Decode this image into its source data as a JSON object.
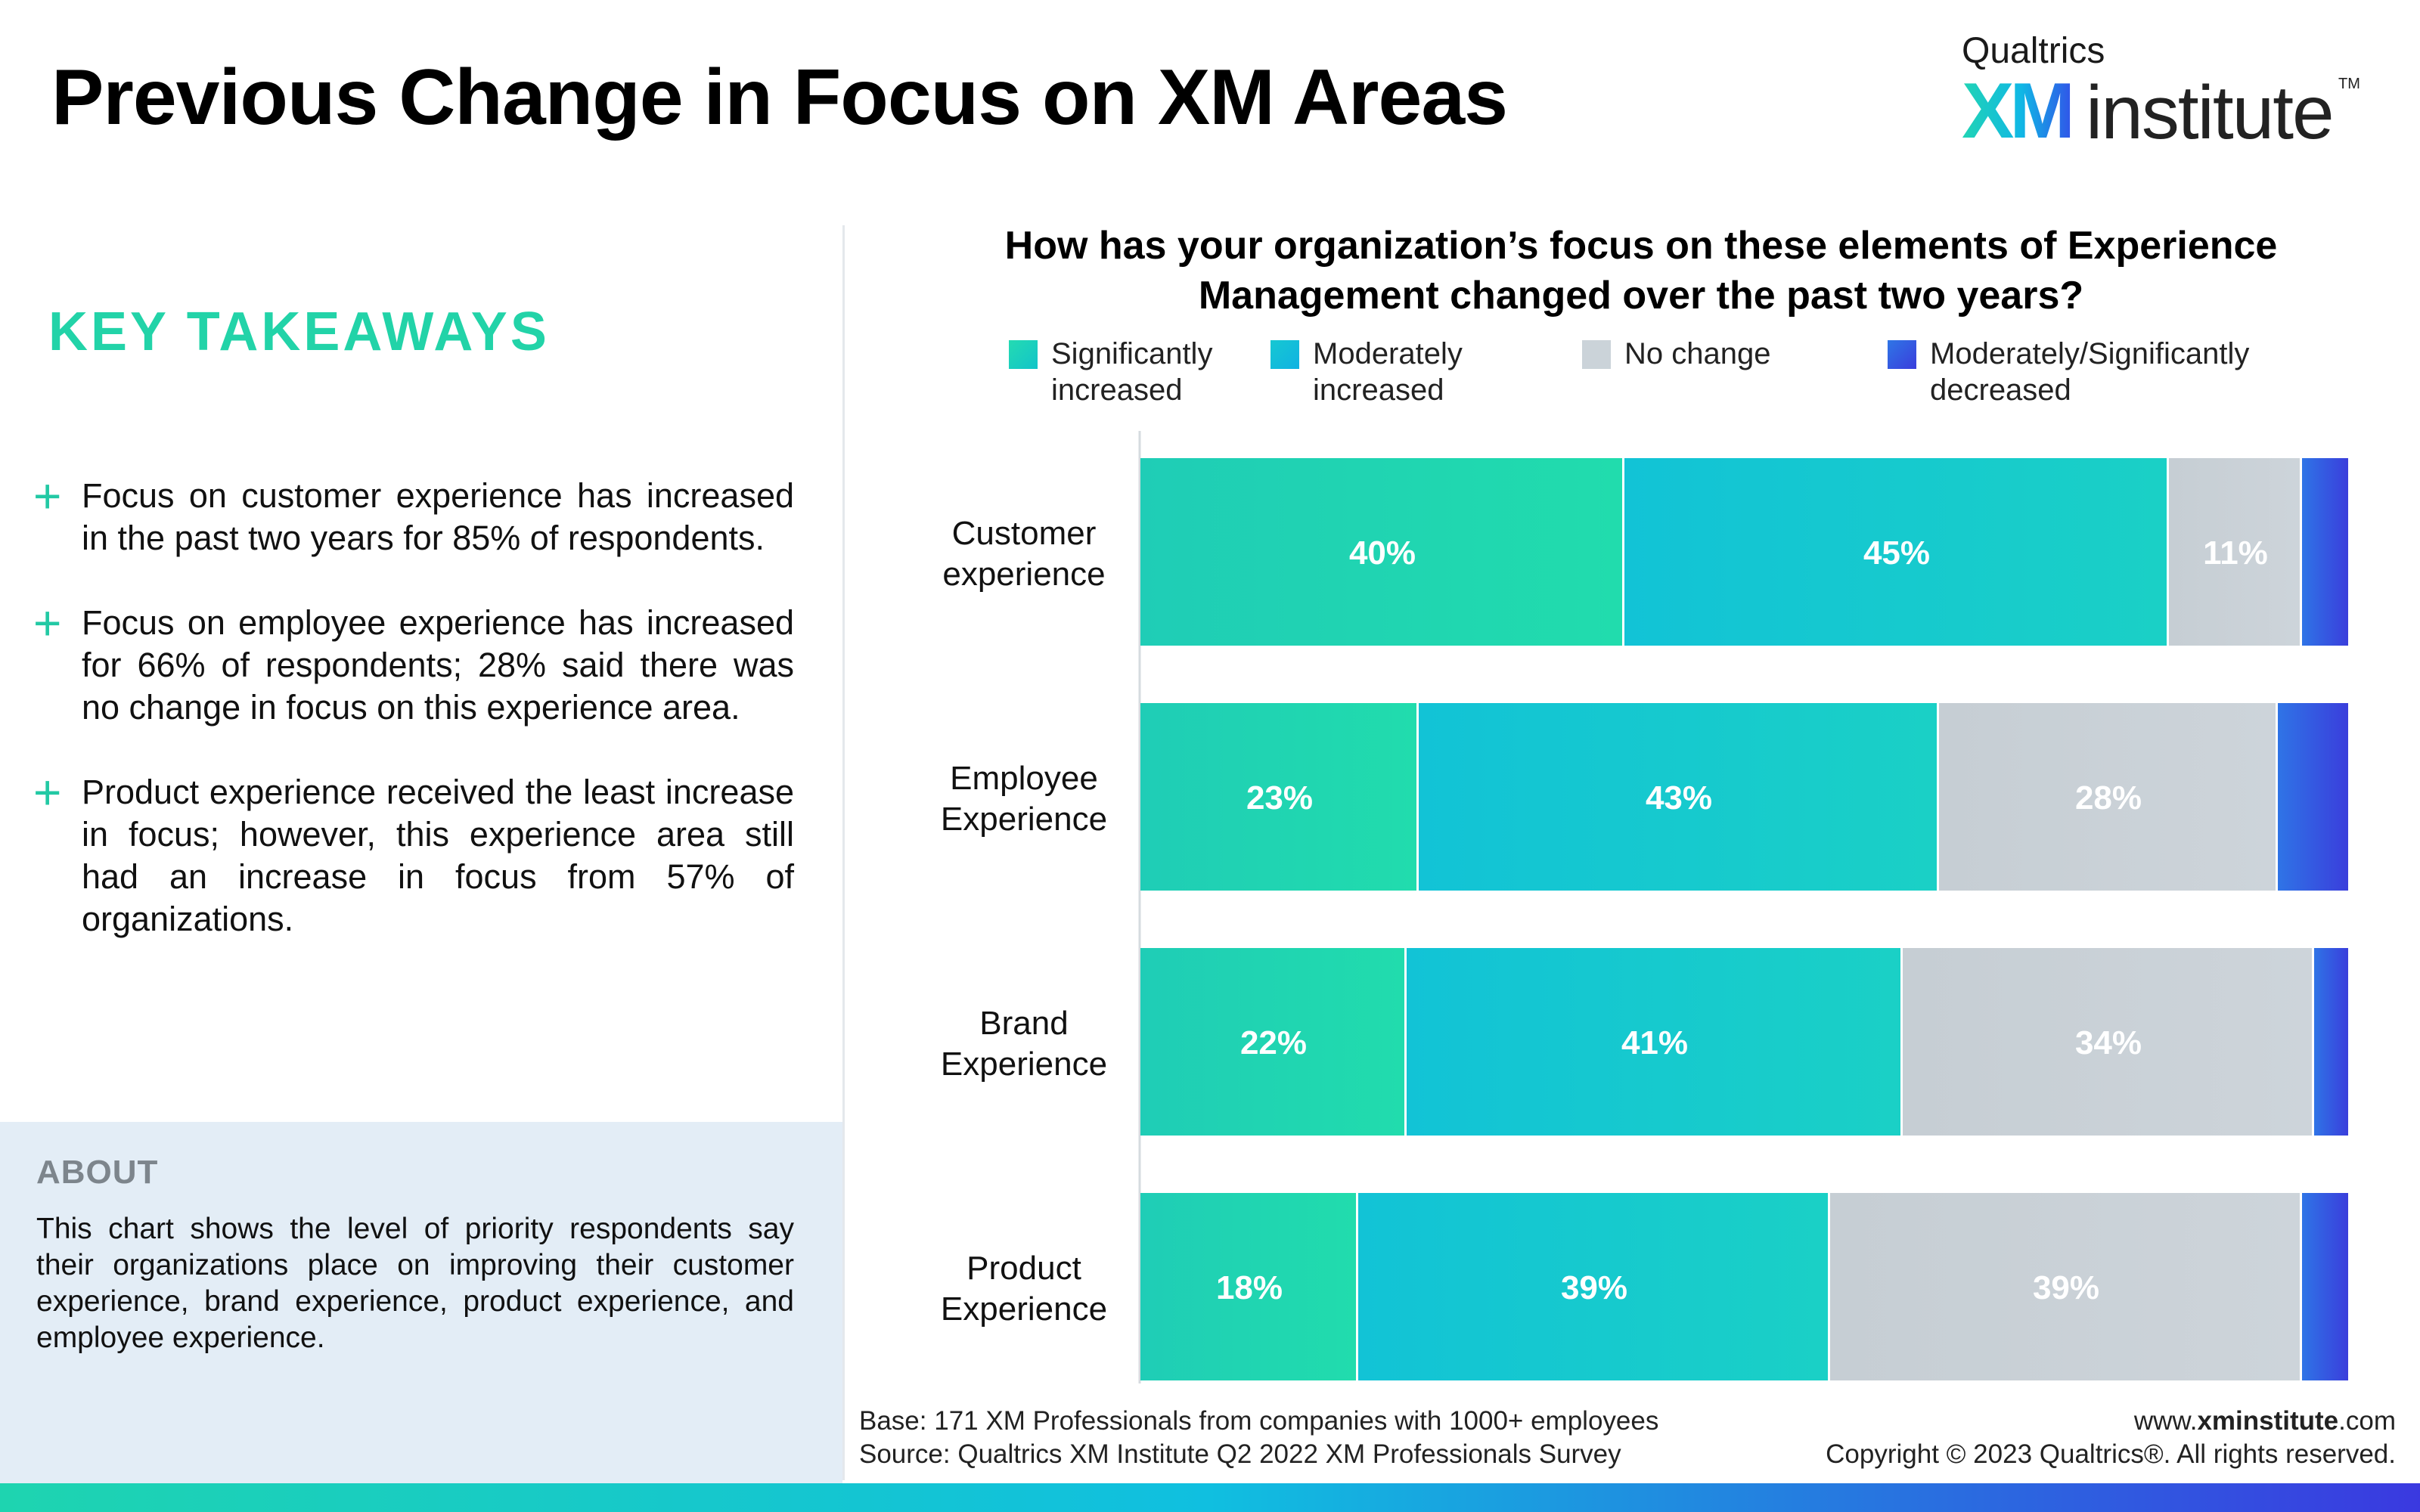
{
  "header": {
    "title": "Previous Change in Focus on XM Areas"
  },
  "logo": {
    "qualtrics": "Qualtrics",
    "xm": "XM",
    "institute": "institute",
    "tm": "TM"
  },
  "sidebar": {
    "key_takeaways_title": "KEY TAKEAWAYS",
    "takeaways": [
      {
        "text": "Focus on customer experience has increased in the past two years for 85% of respondents."
      },
      {
        "text": "Focus on employee experience has increased for 66% of respondents; 28% said there was no change in focus on this experience area."
      },
      {
        "text": "Product experience received the least increase in focus; however, this experience area still had an increase in focus from 57% of organizations."
      }
    ],
    "about_title": "ABOUT",
    "about_text": "This chart shows the level of priority respondents say their organizations place on improving their customer experience, brand experience, product experience, and employee experience."
  },
  "chart_data": {
    "type": "bar",
    "orientation": "horizontal",
    "stacked": true,
    "title": "How has your organization’s focus on these elements of Experience Management changed over the past two years?",
    "categories": [
      "Customer experience",
      "Employee Experience",
      "Brand Experience",
      "Product Experience"
    ],
    "series": [
      {
        "name": "Significantly increased",
        "values": [
          40,
          23,
          22,
          18
        ],
        "labels": [
          "40%",
          "23%",
          "22%",
          "18%"
        ],
        "color": "#1fd6b0"
      },
      {
        "name": "Moderately increased",
        "values": [
          45,
          43,
          41,
          39
        ],
        "labels": [
          "45%",
          "43%",
          "41%",
          "39%"
        ],
        "color": "#14c5d6"
      },
      {
        "name": "No change",
        "values": [
          11,
          28,
          34,
          39
        ],
        "labels": [
          "11%",
          "28%",
          "34%",
          "39%"
        ],
        "color": "#c8d0d6"
      },
      {
        "name": "Moderately/Significantly decreased",
        "values": [
          4,
          6,
          3,
          4
        ],
        "labels": [
          "",
          "",
          "",
          ""
        ],
        "color": "#2f5ae6"
      }
    ],
    "xlim": [
      0,
      100
    ],
    "grid": false,
    "legend": "top"
  },
  "footer": {
    "base": "Base: 171 XM Professionals from companies with 1000+ employees",
    "source": "Source: Qualtrics XM Institute Q2 2022 XM Professionals Survey",
    "url_prefix": "www.",
    "url_bold": "xminstitute",
    "url_suffix": ".com",
    "copyright": "Copyright © 2023 Qualtrics®. All rights reserved."
  },
  "colors": {
    "accent_green": "#22d3a8",
    "about_bg": "#e3edf6"
  }
}
